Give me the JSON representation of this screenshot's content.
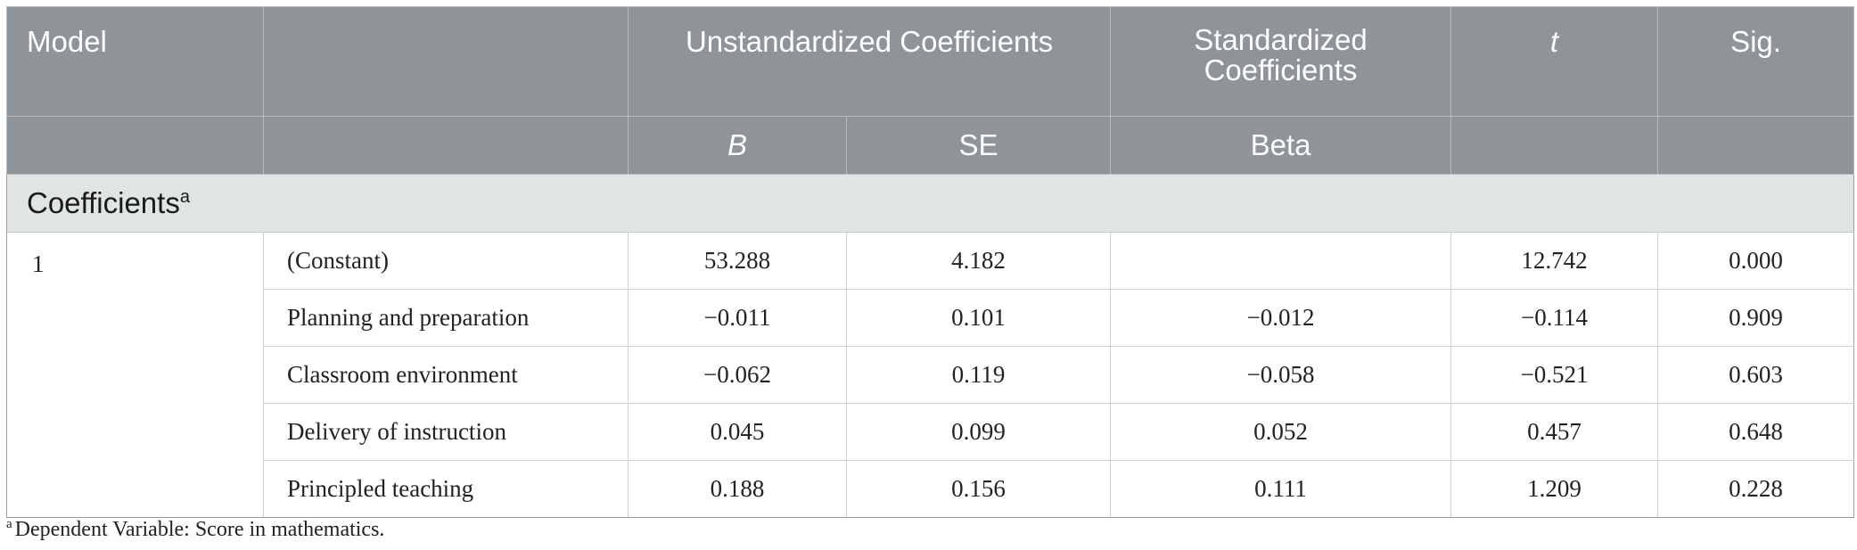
{
  "header": {
    "model": "Model",
    "unstandardized": "Unstandardized Coefficients",
    "standardized": "Standardized Coefficients",
    "t": "t",
    "sig": "Sig.",
    "b": "B",
    "se": "SE",
    "beta": "Beta"
  },
  "group": {
    "label": "Coefficients",
    "marker": "a"
  },
  "rows": [
    {
      "model": "1",
      "variable": "(Constant)",
      "b": "53.288",
      "se": "4.182",
      "beta": "",
      "t": "12.742",
      "sig": "0.000"
    },
    {
      "model": "",
      "variable": "Planning and preparation",
      "b": "−0.011",
      "se": "0.101",
      "beta": "−0.012",
      "t": "−0.114",
      "sig": "0.909"
    },
    {
      "model": "",
      "variable": "Classroom environment",
      "b": "−0.062",
      "se": "0.119",
      "beta": "−0.058",
      "t": "−0.521",
      "sig": "0.603"
    },
    {
      "model": "",
      "variable": "Delivery of instruction",
      "b": "0.045",
      "se": "0.099",
      "beta": "0.052",
      "t": "0.457",
      "sig": "0.648"
    },
    {
      "model": "",
      "variable": "Principled teaching",
      "b": "0.188",
      "se": "0.156",
      "beta": "0.111",
      "t": "1.209",
      "sig": "0.228"
    }
  ],
  "footnote": {
    "marker": "a",
    "text": "Dependent Variable: Score in mathematics."
  }
}
